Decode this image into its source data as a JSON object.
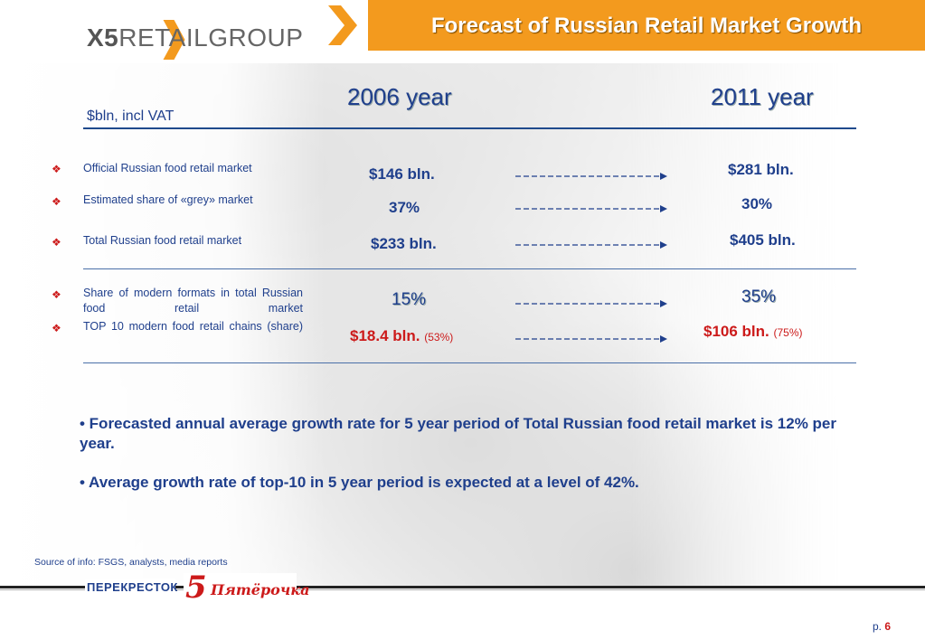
{
  "header": {
    "title": "Forecast of Russian Retail Market Growth",
    "color": "#f39a1e"
  },
  "logo": {
    "x5": "X5",
    "text": "RETAILGROUP"
  },
  "table": {
    "units": "$bln, incl VAT",
    "years": [
      "2006 year",
      "2011 year"
    ],
    "rows": [
      {
        "label": "Official Russian food retail market",
        "v2006": "$146 bln.",
        "v2011": "$281 bln."
      },
      {
        "label": "Estimated share of «grey» market",
        "v2006": "37%",
        "v2011": "30%"
      },
      {
        "label": "Total Russian food retail market",
        "v2006": "$233 bln.",
        "v2011": "$405 bln."
      },
      {
        "label": "Share of modern formats in total Russian food retail market",
        "v2006": "15%",
        "v2011": "35%"
      },
      {
        "label": "TOP 10 modern food retail chains (share)",
        "v2006": "$18.4 bln.",
        "v2006_share": "(53%)",
        "v2011": "$106 bln.",
        "v2011_share": "(75%)"
      }
    ]
  },
  "notes": [
    "• Forecasted annual average growth rate for 5 year period of Total Russian food retail market is 12% per year.",
    "• Average growth rate of top-10 in 5 year period is expected at a level of 42%."
  ],
  "footer": {
    "source": "Source of info: FSGS, analysts, media reports",
    "brand_1": "ПЕРЕКРЕСТОК",
    "brand_2_number": "5",
    "brand_2": "Пятёрочка",
    "page_prefix": "p. ",
    "page_number": "6"
  },
  "colors": {
    "accent": "#f39a1e",
    "text_blue": "#1f3f8c",
    "highlight_red": "#cc1a1a"
  }
}
